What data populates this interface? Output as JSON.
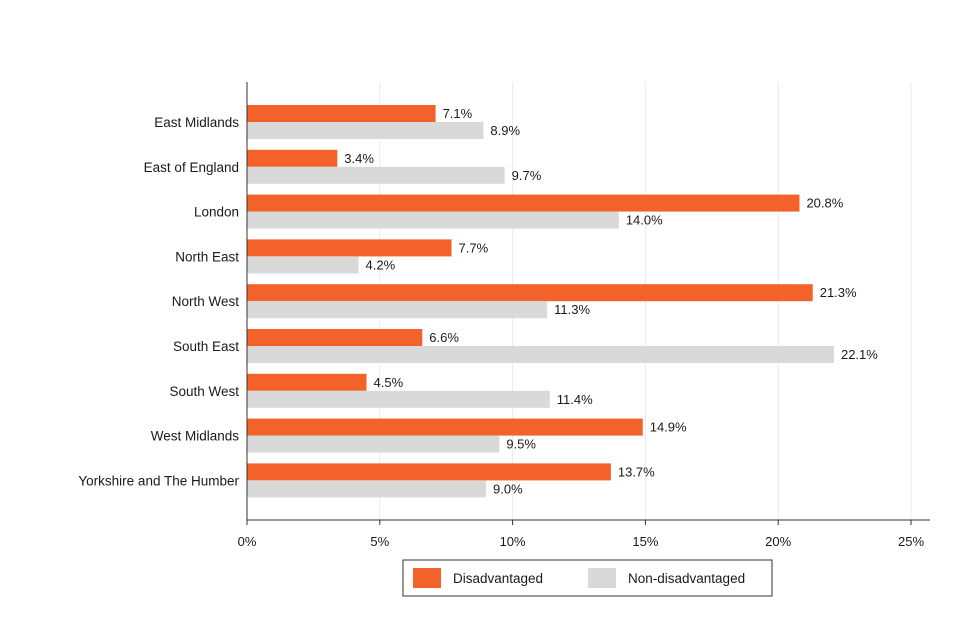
{
  "chart_data": {
    "type": "bar",
    "orientation": "horizontal",
    "title": "",
    "xlabel": "",
    "ylabel": "",
    "categories": [
      "East Midlands",
      "East of England",
      "London",
      "North East",
      "North West",
      "South East",
      "South West",
      "West Midlands",
      "Yorkshire and The Humber"
    ],
    "series": [
      {
        "name": "Disadvantaged",
        "color": "#f4622b",
        "values": [
          7.1,
          3.4,
          20.8,
          7.7,
          21.3,
          6.6,
          4.5,
          14.9,
          13.7
        ]
      },
      {
        "name": "Non-disadvantaged",
        "color": "#d9d9d9",
        "values": [
          8.9,
          9.7,
          14.0,
          4.2,
          11.3,
          22.1,
          11.4,
          9.5,
          9.0
        ]
      }
    ],
    "xlim": [
      0,
      25
    ],
    "xticks": [
      0,
      5,
      10,
      15,
      20,
      25
    ],
    "value_suffix": "%",
    "grid": true,
    "legend_position": "bottom-center"
  }
}
